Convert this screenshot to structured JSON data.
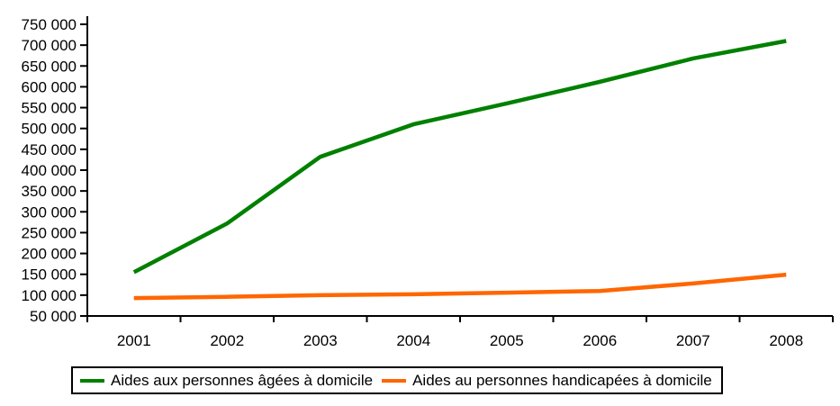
{
  "chart_data": {
    "type": "line",
    "title": "",
    "xlabel": "",
    "ylabel": "",
    "categories": [
      "2001",
      "2002",
      "2003",
      "2004",
      "2005",
      "2006",
      "2007",
      "2008"
    ],
    "series": [
      {
        "name": "Aides aux personnes âgées à domicile",
        "color": "#008000",
        "values": [
          155000,
          272000,
          432000,
          510000,
          560000,
          612000,
          668000,
          710000
        ]
      },
      {
        "name": "Aides au personnes handicapées à domicile",
        "color": "#FF6600",
        "values": [
          93000,
          96000,
          100000,
          102000,
          106000,
          110000,
          128000,
          149000
        ]
      }
    ],
    "ylim": [
      50000,
      750000
    ],
    "ytick_step": 50000,
    "ytick_labels": [
      "50 000",
      "100 000",
      "150 000",
      "200 000",
      "250 000",
      "300 000",
      "350 000",
      "400 000",
      "450 000",
      "500 000",
      "550 000",
      "600 000",
      "650 000",
      "700 000",
      "750 000"
    ],
    "grid": "off",
    "legend_position": "bottom",
    "axis_color": "#000000",
    "text_color": "#000000",
    "background_color": "#FFFFFF"
  }
}
